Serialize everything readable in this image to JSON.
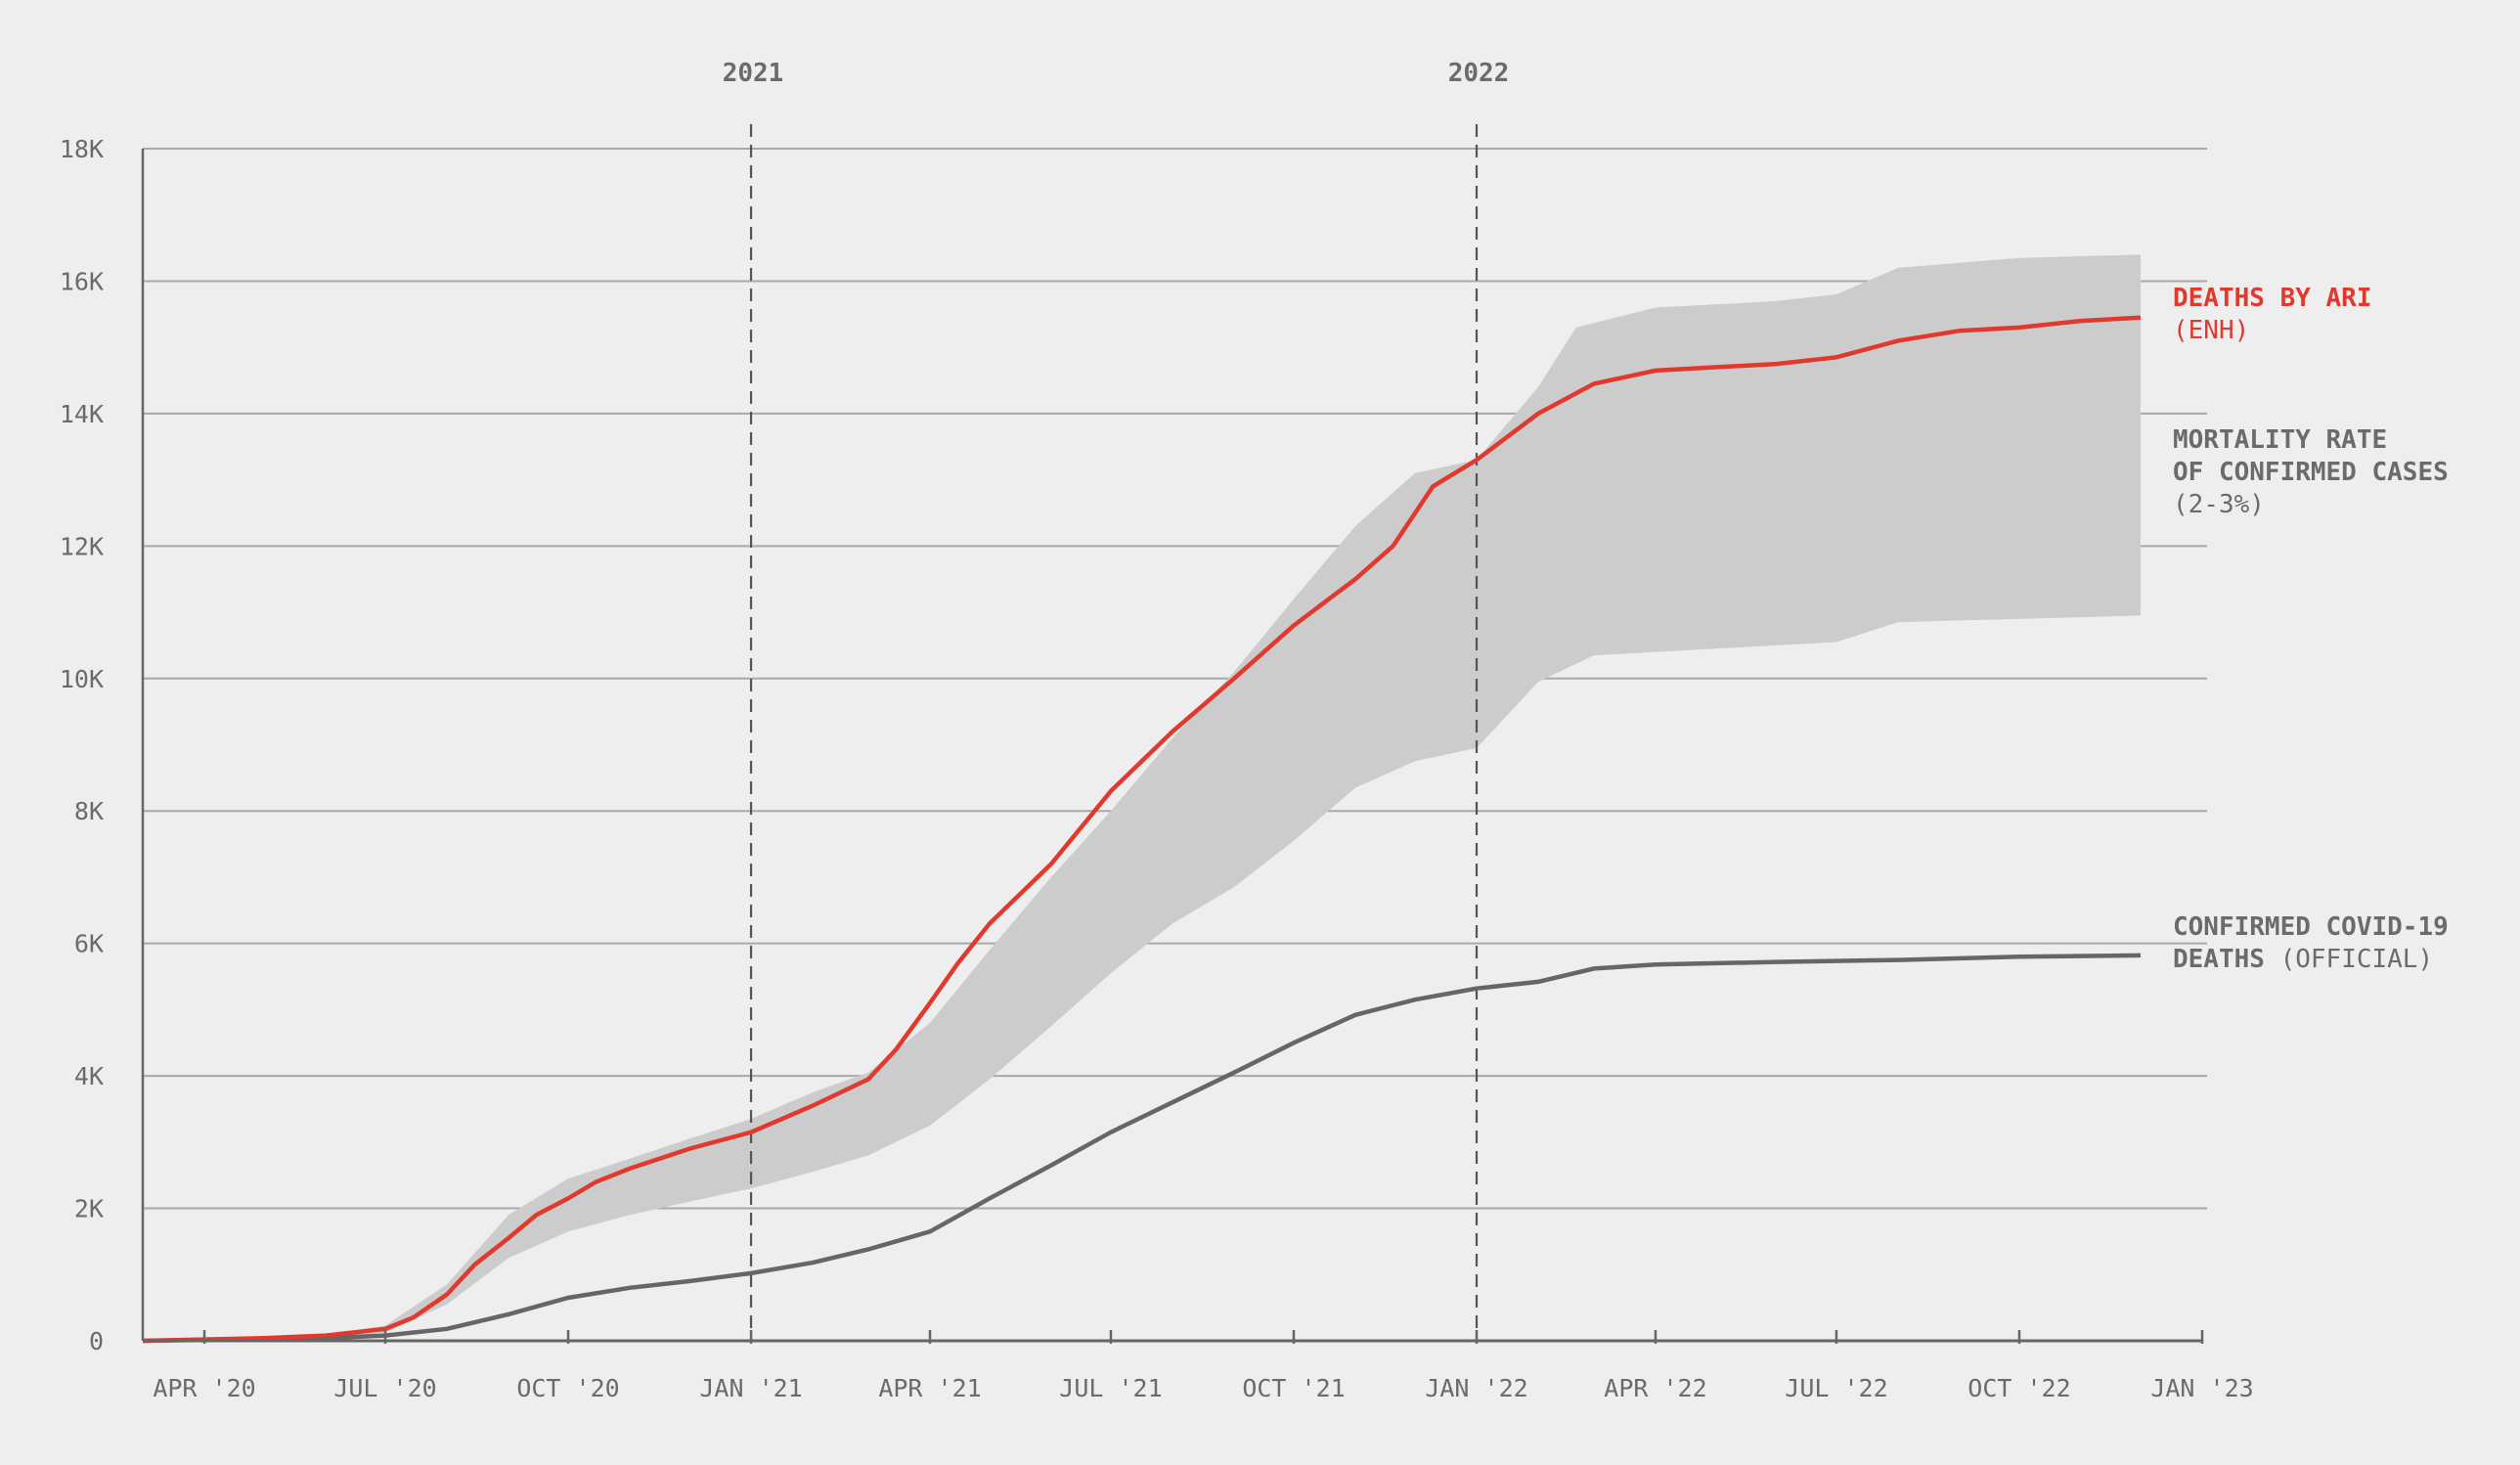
{
  "chart_data": {
    "type": "line",
    "y_ticks": [
      {
        "value": 0,
        "label": "0"
      },
      {
        "value": 2000,
        "label": "2K"
      },
      {
        "value": 4000,
        "label": "4K"
      },
      {
        "value": 6000,
        "label": "6K"
      },
      {
        "value": 8000,
        "label": "8K"
      },
      {
        "value": 10000,
        "label": "10K"
      },
      {
        "value": 12000,
        "label": "12K"
      },
      {
        "value": 14000,
        "label": "14K"
      },
      {
        "value": 16000,
        "label": "16K"
      },
      {
        "value": 18000,
        "label": "18K"
      }
    ],
    "ylim": [
      0,
      18000
    ],
    "xlim": [
      "2020-03-01",
      "2023-01-01"
    ],
    "x_ticks": [
      {
        "date": "2020-04-01",
        "label": "APR '20"
      },
      {
        "date": "2020-07-01",
        "label": "JUL '20"
      },
      {
        "date": "2020-10-01",
        "label": "OCT '20"
      },
      {
        "date": "2021-01-01",
        "label": "JAN '21"
      },
      {
        "date": "2021-04-01",
        "label": "APR '21"
      },
      {
        "date": "2021-07-01",
        "label": "JUL '21"
      },
      {
        "date": "2021-10-01",
        "label": "OCT '21"
      },
      {
        "date": "2022-01-01",
        "label": "JAN '22"
      },
      {
        "date": "2022-04-01",
        "label": "APR '22"
      },
      {
        "date": "2022-07-01",
        "label": "JUL '22"
      },
      {
        "date": "2022-10-01",
        "label": "OCT '22"
      },
      {
        "date": "2023-01-01",
        "label": "JAN '23"
      }
    ],
    "year_markers": [
      {
        "date": "2021-01-01",
        "label": "2021"
      },
      {
        "date": "2022-01-01",
        "label": "2022"
      }
    ],
    "grid": true,
    "colors": {
      "ari": "#e03a2f",
      "official": "#666666",
      "band": "#cccccc"
    },
    "series": [
      {
        "key": "ari",
        "label_bold": "DEATHS BY ARI",
        "label_light": "(ENH)",
        "points": [
          [
            "2020-03-01",
            0
          ],
          [
            "2020-05-01",
            40
          ],
          [
            "2020-06-01",
            80
          ],
          [
            "2020-07-01",
            180
          ],
          [
            "2020-07-15",
            350
          ],
          [
            "2020-08-01",
            700
          ],
          [
            "2020-08-15",
            1150
          ],
          [
            "2020-09-01",
            1550
          ],
          [
            "2020-09-15",
            1900
          ],
          [
            "2020-10-01",
            2150
          ],
          [
            "2020-10-15",
            2400
          ],
          [
            "2020-11-01",
            2600
          ],
          [
            "2020-12-01",
            2900
          ],
          [
            "2021-01-01",
            3150
          ],
          [
            "2021-02-01",
            3550
          ],
          [
            "2021-03-01",
            3950
          ],
          [
            "2021-03-15",
            4400
          ],
          [
            "2021-04-01",
            5100
          ],
          [
            "2021-04-15",
            5700
          ],
          [
            "2021-05-01",
            6300
          ],
          [
            "2021-06-01",
            7200
          ],
          [
            "2021-07-01",
            8300
          ],
          [
            "2021-08-01",
            9200
          ],
          [
            "2021-09-01",
            10000
          ],
          [
            "2021-10-01",
            10800
          ],
          [
            "2021-11-01",
            11500
          ],
          [
            "2021-11-20",
            12000
          ],
          [
            "2021-12-10",
            12900
          ],
          [
            "2022-01-01",
            13300
          ],
          [
            "2022-02-01",
            14000
          ],
          [
            "2022-03-01",
            14450
          ],
          [
            "2022-04-01",
            14650
          ],
          [
            "2022-05-01",
            14700
          ],
          [
            "2022-06-01",
            14750
          ],
          [
            "2022-07-01",
            14850
          ],
          [
            "2022-08-01",
            15100
          ],
          [
            "2022-09-01",
            15250
          ],
          [
            "2022-10-01",
            15300
          ],
          [
            "2022-11-01",
            15400
          ],
          [
            "2022-12-01",
            15450
          ]
        ]
      },
      {
        "key": "official",
        "label_bold": "CONFIRMED COVID-19",
        "label_bold_line2": "DEATHS",
        "label_light": "(OFFICIAL)",
        "points": [
          [
            "2020-03-01",
            0
          ],
          [
            "2020-06-01",
            40
          ],
          [
            "2020-07-01",
            80
          ],
          [
            "2020-08-01",
            180
          ],
          [
            "2020-09-01",
            400
          ],
          [
            "2020-10-01",
            650
          ],
          [
            "2020-11-01",
            800
          ],
          [
            "2020-12-01",
            900
          ],
          [
            "2021-01-01",
            1020
          ],
          [
            "2021-02-01",
            1180
          ],
          [
            "2021-03-01",
            1380
          ],
          [
            "2021-04-01",
            1650
          ],
          [
            "2021-05-01",
            2150
          ],
          [
            "2021-06-01",
            2650
          ],
          [
            "2021-07-01",
            3150
          ],
          [
            "2021-08-01",
            3600
          ],
          [
            "2021-09-01",
            4050
          ],
          [
            "2021-10-01",
            4500
          ],
          [
            "2021-11-01",
            4920
          ],
          [
            "2021-12-01",
            5150
          ],
          [
            "2022-01-01",
            5320
          ],
          [
            "2022-02-01",
            5420
          ],
          [
            "2022-03-01",
            5620
          ],
          [
            "2022-04-01",
            5680
          ],
          [
            "2022-06-01",
            5720
          ],
          [
            "2022-08-01",
            5750
          ],
          [
            "2022-10-01",
            5800
          ],
          [
            "2022-12-01",
            5820
          ]
        ]
      }
    ],
    "band": {
      "key": "rate",
      "label_bold_lines": [
        "MORTALITY RATE",
        "OF CONFIRMED CASES"
      ],
      "label_light": "(2-3%)",
      "upper": [
        [
          "2020-03-01",
          0
        ],
        [
          "2020-05-01",
          40
        ],
        [
          "2020-06-01",
          80
        ],
        [
          "2020-07-01",
          230
        ],
        [
          "2020-08-01",
          850
        ],
        [
          "2020-09-01",
          1900
        ],
        [
          "2020-10-01",
          2450
        ],
        [
          "2020-11-01",
          2750
        ],
        [
          "2020-12-01",
          3050
        ],
        [
          "2021-01-01",
          3350
        ],
        [
          "2021-02-01",
          3750
        ],
        [
          "2021-03-01",
          4050
        ],
        [
          "2021-04-01",
          4800
        ],
        [
          "2021-05-01",
          5900
        ],
        [
          "2021-06-01",
          7000
        ],
        [
          "2021-07-01",
          8000
        ],
        [
          "2021-08-01",
          9100
        ],
        [
          "2021-09-01",
          10100
        ],
        [
          "2021-10-01",
          11200
        ],
        [
          "2021-11-01",
          12300
        ],
        [
          "2021-12-01",
          13100
        ],
        [
          "2022-01-01",
          13300
        ],
        [
          "2022-02-01",
          14400
        ],
        [
          "2022-02-20",
          15300
        ],
        [
          "2022-04-01",
          15600
        ],
        [
          "2022-06-01",
          15700
        ],
        [
          "2022-07-01",
          15800
        ],
        [
          "2022-08-01",
          16200
        ],
        [
          "2022-10-01",
          16350
        ],
        [
          "2022-12-01",
          16400
        ]
      ],
      "lower": [
        [
          "2020-03-01",
          0
        ],
        [
          "2020-05-01",
          25
        ],
        [
          "2020-06-01",
          55
        ],
        [
          "2020-07-01",
          120
        ],
        [
          "2020-08-01",
          550
        ],
        [
          "2020-09-01",
          1250
        ],
        [
          "2020-10-01",
          1650
        ],
        [
          "2020-11-01",
          1900
        ],
        [
          "2020-12-01",
          2100
        ],
        [
          "2021-01-01",
          2300
        ],
        [
          "2021-02-01",
          2550
        ],
        [
          "2021-03-01",
          2800
        ],
        [
          "2021-04-01",
          3250
        ],
        [
          "2021-05-01",
          3950
        ],
        [
          "2021-06-01",
          4750
        ],
        [
          "2021-07-01",
          5550
        ],
        [
          "2021-08-01",
          6300
        ],
        [
          "2021-09-01",
          6850
        ],
        [
          "2021-10-01",
          7550
        ],
        [
          "2021-11-01",
          8350
        ],
        [
          "2021-12-01",
          8750
        ],
        [
          "2022-01-01",
          8950
        ],
        [
          "2022-02-01",
          9950
        ],
        [
          "2022-03-01",
          10350
        ],
        [
          "2022-05-01",
          10450
        ],
        [
          "2022-07-01",
          10550
        ],
        [
          "2022-08-01",
          10850
        ],
        [
          "2022-12-01",
          10950
        ]
      ]
    }
  }
}
